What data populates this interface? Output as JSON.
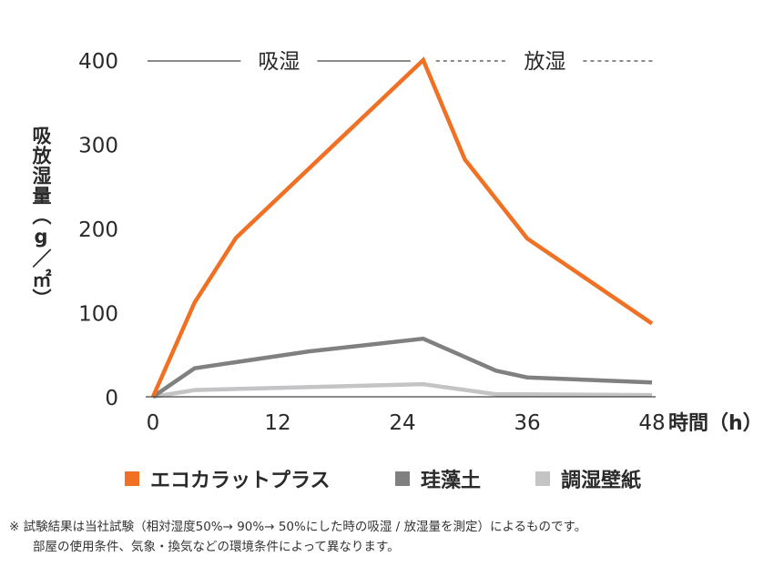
{
  "chart_data": {
    "type": "line",
    "ylabel": "吸放湿量（g／㎡）",
    "xlabel": "時間（h）",
    "x_ticks": [
      "0",
      "12",
      "24",
      "36",
      "48"
    ],
    "y_ticks": [
      "0",
      "100",
      "200",
      "300",
      "400"
    ],
    "xlim": [
      0,
      48
    ],
    "ylim": [
      0,
      400
    ],
    "grid": false,
    "legend_position": "bottom",
    "phases": [
      {
        "label": "吸湿",
        "from": 0,
        "to": 26,
        "line_style": "solid"
      },
      {
        "label": "放湿",
        "from": 26,
        "to": 48,
        "line_style": "dashed"
      }
    ],
    "series": [
      {
        "name": "エコカラットプラス",
        "color": "#f07024",
        "x": [
          0,
          4,
          8,
          26,
          30,
          36,
          48
        ],
        "y": [
          0,
          112,
          189,
          400,
          282,
          188,
          87
        ]
      },
      {
        "name": "珪藻土",
        "color": "#808080",
        "x": [
          0,
          4,
          15,
          26,
          33,
          36,
          48
        ],
        "y": [
          0,
          34,
          54,
          69,
          31,
          23,
          17
        ]
      },
      {
        "name": "調湿壁紙",
        "color": "#c4c4c6",
        "x": [
          0,
          4,
          26,
          33,
          36,
          48
        ],
        "y": [
          0,
          8,
          15,
          3,
          3,
          2
        ]
      }
    ]
  },
  "note": {
    "line1": "※ 試験結果は当社試験（相対湿度50%→ 90%→ 50%にした時の吸湿 / 放湿量を測定）によるものです。",
    "line2": "部屋の使用条件、気象・換気などの環境条件によって異なります。"
  }
}
